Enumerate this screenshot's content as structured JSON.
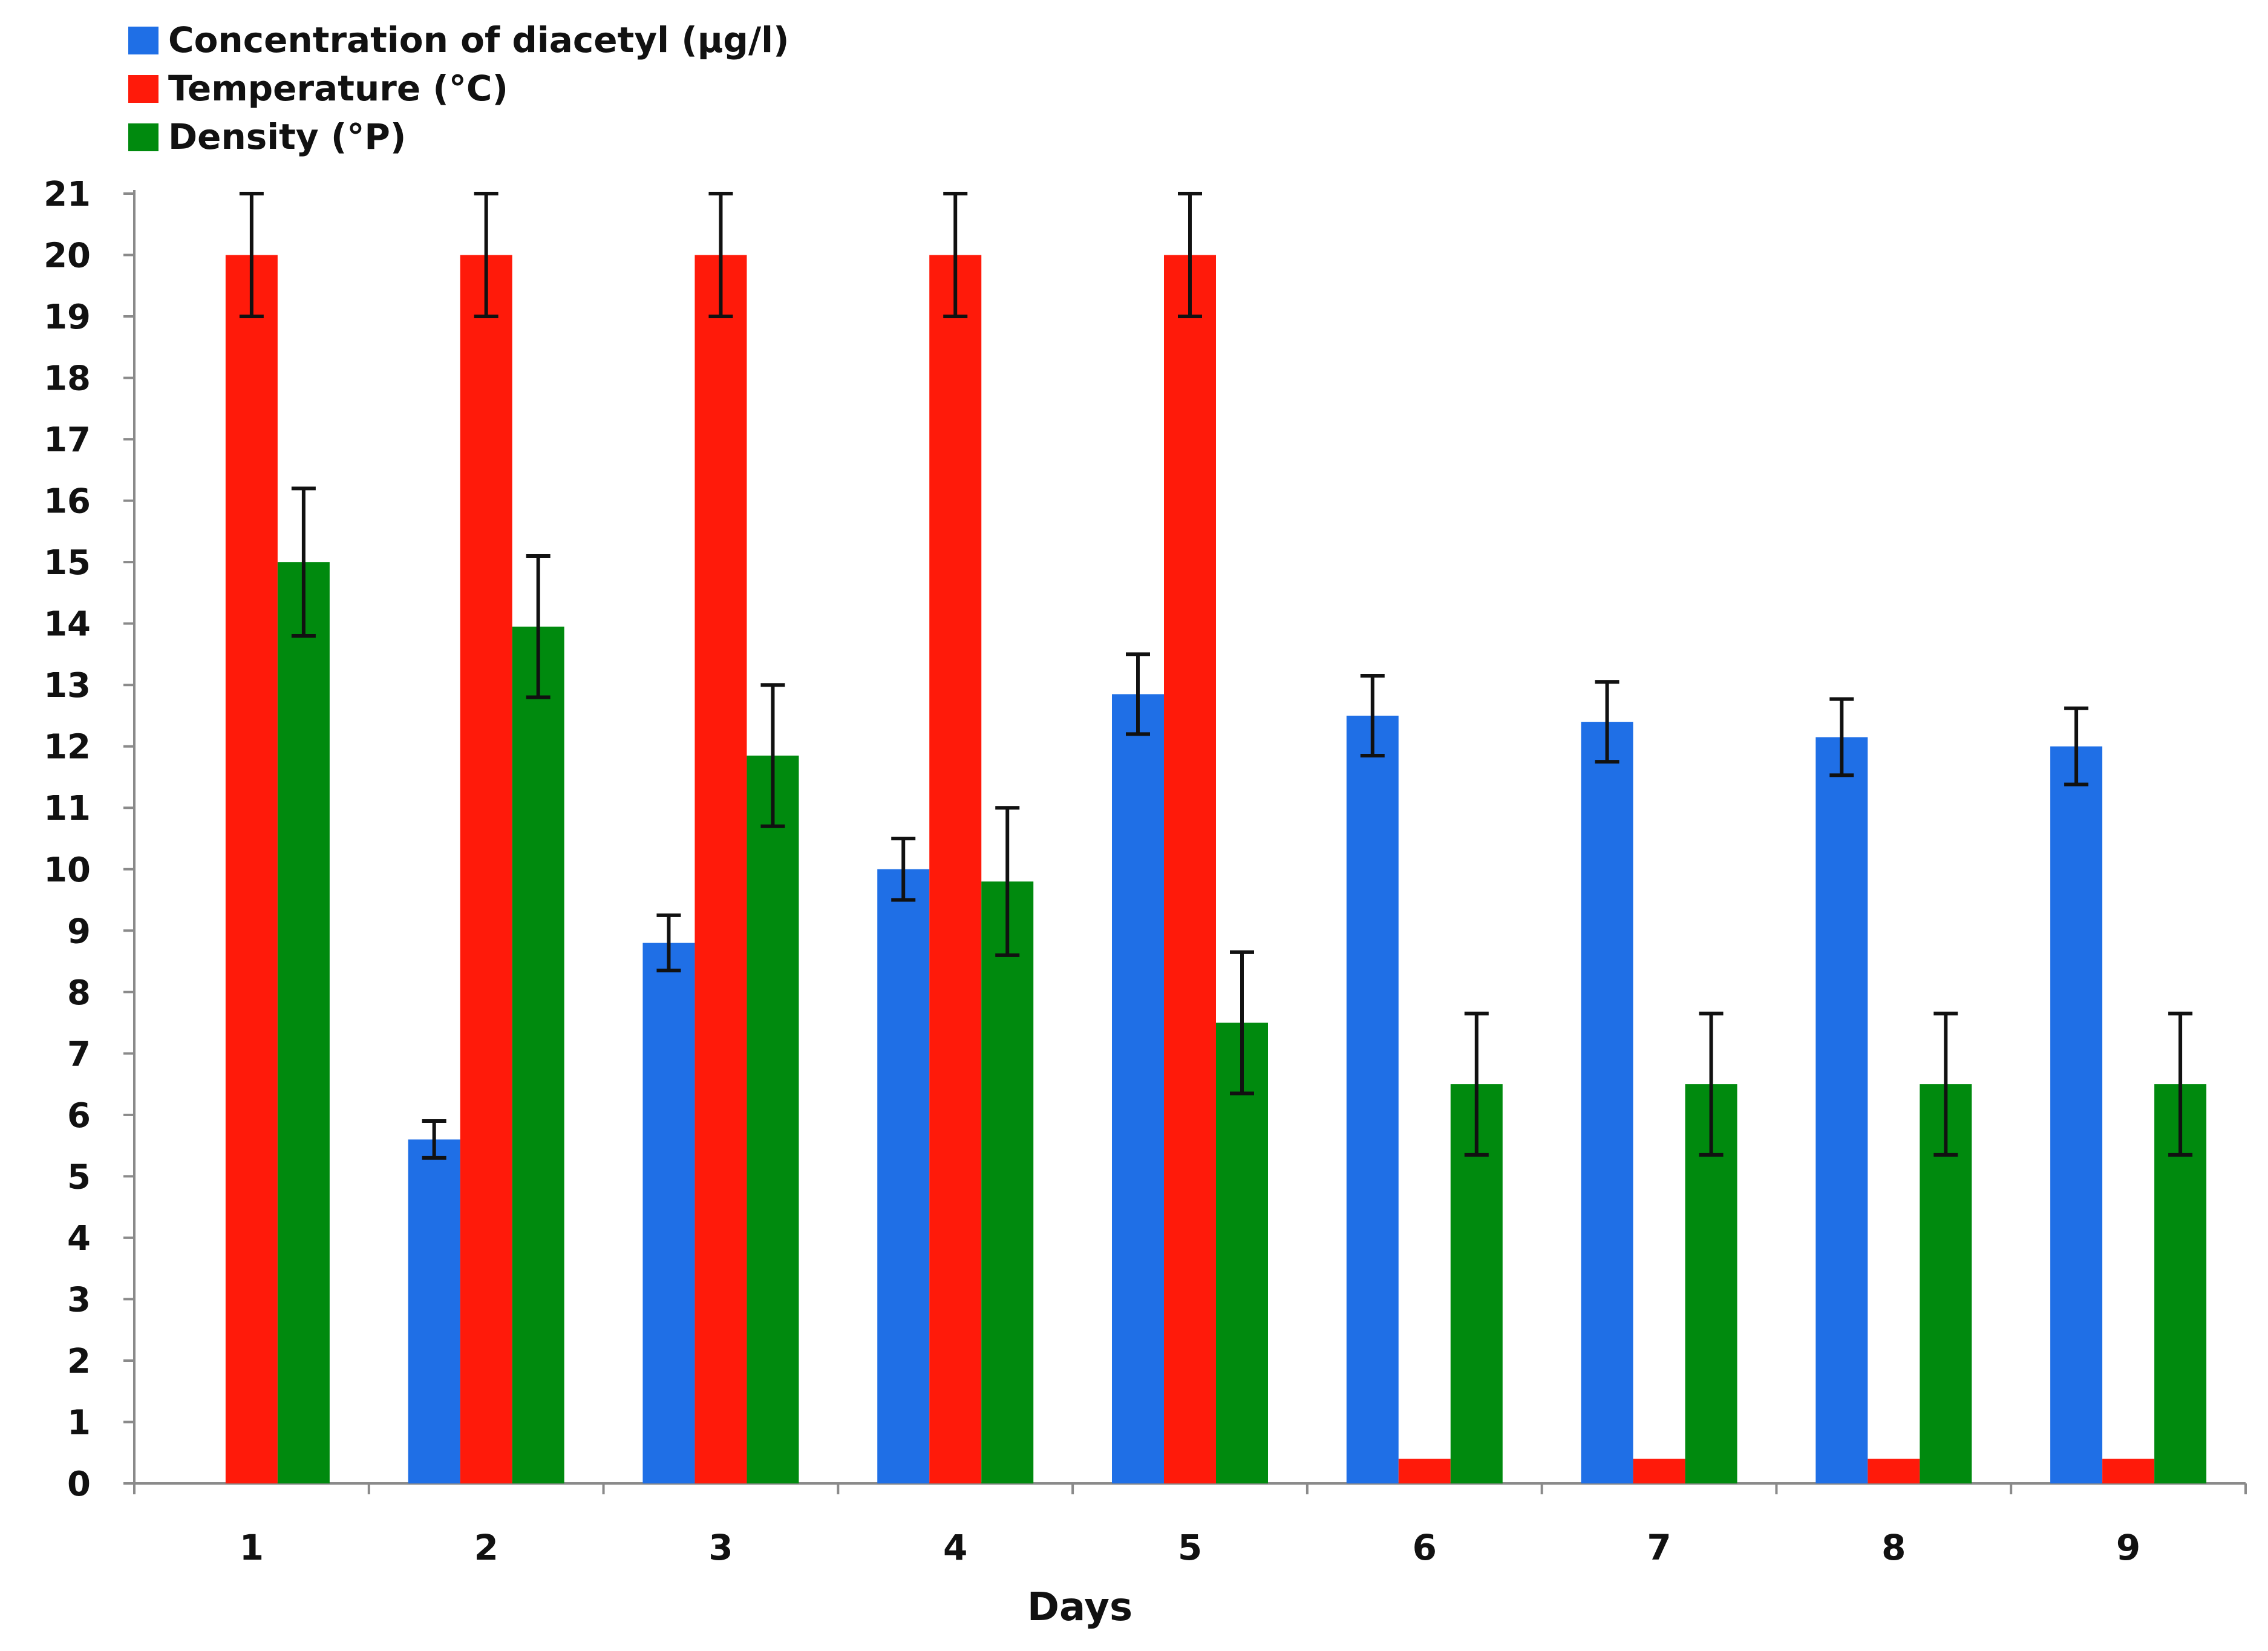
{
  "chart_data": {
    "type": "bar",
    "title": "",
    "xlabel": "Days",
    "ylabel": "",
    "categories": [
      "1",
      "2",
      "3",
      "4",
      "5",
      "6",
      "7",
      "8",
      "9"
    ],
    "ylim": [
      0,
      21
    ],
    "yticks": [
      "0",
      "1",
      "2",
      "3",
      "4",
      "5",
      "6",
      "7",
      "8",
      "9",
      "10",
      "11",
      "12",
      "13",
      "14",
      "15",
      "16",
      "17",
      "18",
      "19",
      "20",
      "21"
    ],
    "grid": false,
    "legend_position": "top-left",
    "series": [
      {
        "name": "Concentration of diacetyl (μg/l)",
        "color": "#1f6fe6",
        "values": [
          0,
          5.6,
          8.8,
          10.0,
          12.85,
          12.5,
          12.4,
          12.15,
          12.0
        ],
        "errors": [
          0,
          0.3,
          0.45,
          0.5,
          0.65,
          0.65,
          0.65,
          0.62,
          0.62
        ]
      },
      {
        "name": "Temperature (°C)",
        "color": "#ff1a0a",
        "values": [
          20,
          20,
          20,
          20,
          20,
          0.4,
          0.4,
          0.4,
          0.4
        ],
        "errors": [
          1,
          1,
          1,
          1,
          1,
          0,
          0,
          0,
          0
        ]
      },
      {
        "name": "Density (°P)",
        "color": "#008a0e",
        "values": [
          15.0,
          13.95,
          11.85,
          9.8,
          7.5,
          6.5,
          6.5,
          6.5,
          6.5
        ],
        "errors": [
          1.2,
          1.15,
          1.15,
          1.2,
          1.15,
          1.15,
          1.15,
          1.15,
          1.15
        ]
      }
    ]
  }
}
